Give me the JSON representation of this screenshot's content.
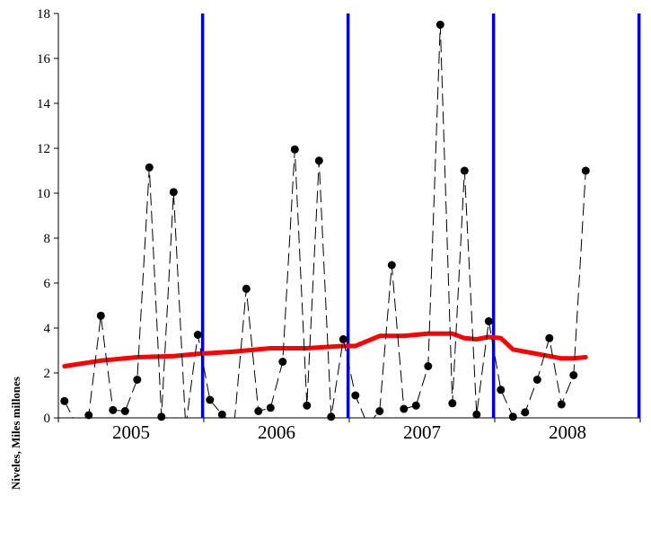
{
  "chart_data": {
    "type": "line",
    "ylabel": "Niveles, Miles millones",
    "xlabel": "",
    "ylim": [
      0,
      18
    ],
    "y_ticks": [
      "0",
      "2",
      "4",
      "6",
      "8",
      "10",
      "12",
      "14",
      "16",
      "18"
    ],
    "x_tick_labels": [
      "2005",
      "2006",
      "2007",
      "2008"
    ],
    "x_range_months": [
      0,
      48
    ],
    "grid": false,
    "legend": "none",
    "series": [
      {
        "style": "black dashed line with circle markers",
        "color": "#000000",
        "x": [
          0.5,
          1.5,
          2.5,
          3.5,
          4.5,
          5.5,
          6.5,
          7.5,
          8.5,
          9.5,
          10.5,
          11.5,
          12.5,
          13.5,
          14.5,
          15.5,
          16.5,
          17.5,
          18.5,
          19.5,
          20.5,
          21.5,
          22.5,
          23.5,
          24.5,
          25.5,
          26.5,
          27.5,
          28.5,
          29.5,
          30.5,
          31.5,
          32.5,
          33.5,
          34.5,
          35.5,
          36.5,
          37.5,
          38.5,
          39.5,
          40.5,
          41.5,
          42.5,
          43.5
        ],
        "values": [
          0.75,
          -0.3,
          0.12,
          4.55,
          0.35,
          0.3,
          1.7,
          11.15,
          0.05,
          10.05,
          -0.4,
          3.7,
          0.8,
          0.15,
          -0.3,
          5.75,
          0.3,
          0.45,
          2.5,
          11.95,
          0.55,
          11.45,
          0.05,
          3.5,
          1.0,
          -0.3,
          0.3,
          6.8,
          0.4,
          0.55,
          2.3,
          17.5,
          0.65,
          11.0,
          0.15,
          4.3,
          1.25,
          0.05,
          0.25,
          1.7,
          3.55,
          0.6,
          1.9,
          11.0
        ]
      },
      {
        "style": "thick red trend line",
        "color": "#ff0000",
        "x": [
          0.5,
          3.5,
          6.5,
          9.5,
          11.5,
          14.5,
          17.5,
          20.5,
          23.5,
          24.5,
          26.5,
          28.5,
          30.5,
          32.5,
          33.5,
          34.5,
          35.5,
          36.5,
          37.5,
          39.5,
          41.5,
          42.5,
          43.5
        ],
        "values": [
          2.3,
          2.55,
          2.7,
          2.75,
          2.85,
          2.95,
          3.1,
          3.1,
          3.2,
          3.2,
          3.65,
          3.65,
          3.75,
          3.75,
          3.55,
          3.5,
          3.6,
          3.55,
          3.05,
          2.85,
          2.65,
          2.65,
          2.7
        ]
      }
    ],
    "vertical_lines": {
      "color": "#0000dd",
      "x_months": [
        11.9,
        23.9,
        35.9,
        47.9
      ]
    },
    "marker_color": "#000000"
  }
}
